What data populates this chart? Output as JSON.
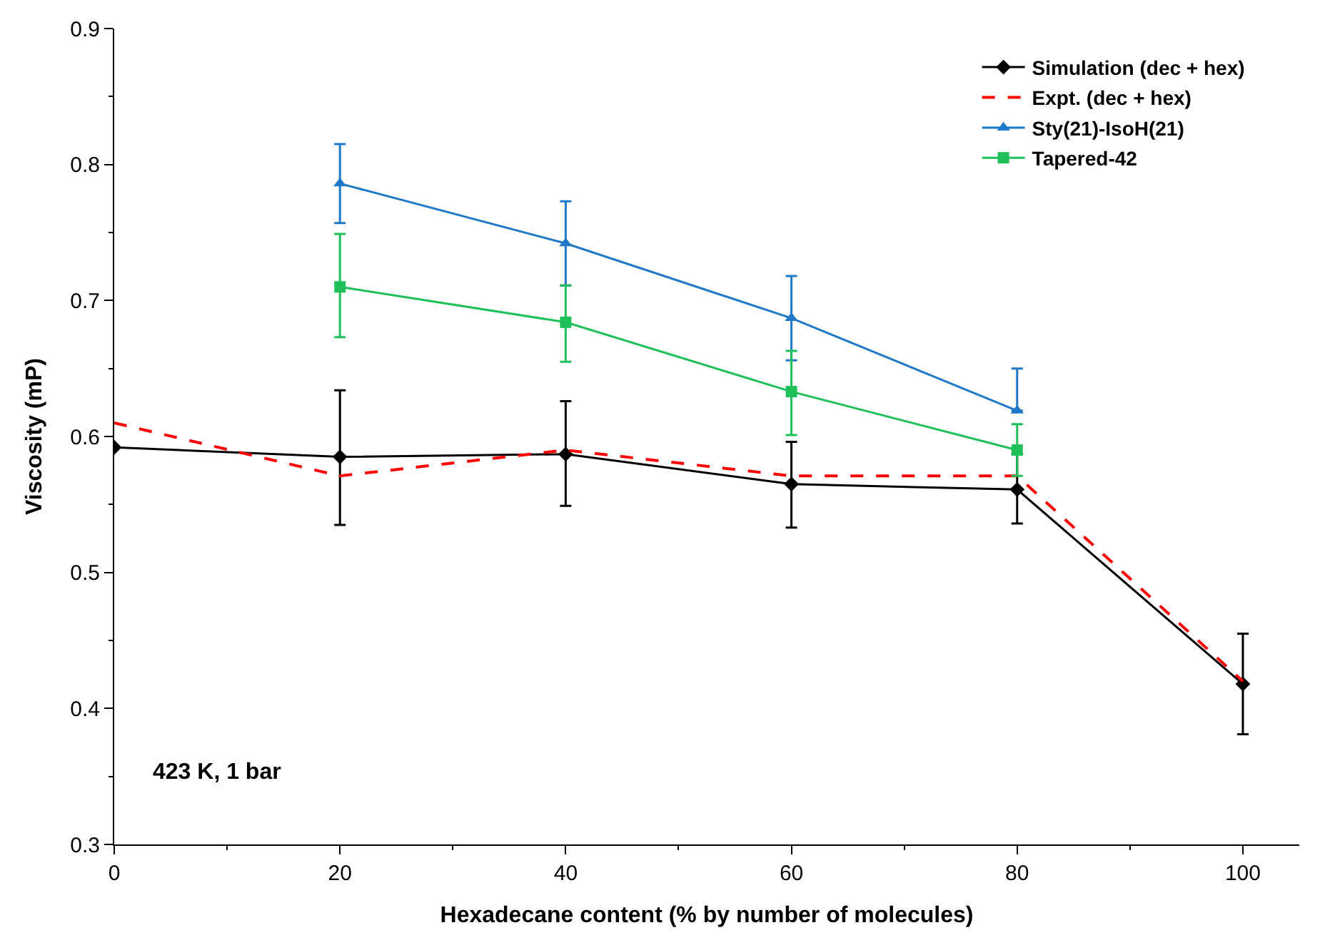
{
  "chart_data": {
    "type": "line",
    "xlabel": "Hexadecane content (% by number of molecules)",
    "ylabel": "Viscosity (mP)",
    "xlim": [
      0,
      105
    ],
    "xticks": [
      0,
      20,
      40,
      60,
      80,
      100
    ],
    "ylim": [
      0.3,
      0.9
    ],
    "yticks": [
      0.3,
      0.4,
      0.5,
      0.6,
      0.7,
      0.8,
      0.9
    ],
    "legend": "top right",
    "annotations": [
      "423 K, 1 bar"
    ],
    "series": [
      {
        "name": "Simulation (dec + hex)",
        "color": "#000000",
        "marker": "diamond",
        "line_style": "solid",
        "x": [
          0,
          20,
          40,
          60,
          80,
          100
        ],
        "values": [
          0.592,
          0.585,
          0.587,
          0.565,
          0.561,
          0.418
        ],
        "errors": [
          null,
          [
            0.535,
            0.634
          ],
          [
            0.549,
            0.626
          ],
          [
            0.533,
            0.596
          ],
          [
            0.536,
            0.587
          ],
          [
            0.381,
            0.455
          ]
        ]
      },
      {
        "name": "Expt. (dec + hex)",
        "color": "#ff0000",
        "marker": "none",
        "line_style": "dashed",
        "x": [
          0,
          20,
          40,
          60,
          80,
          100
        ],
        "values": [
          0.61,
          0.571,
          0.59,
          0.571,
          0.571,
          0.42
        ]
      },
      {
        "name": "Sty(21)-IsoH(21)",
        "color": "#1f78c8",
        "marker": "triangle",
        "line_style": "solid",
        "x": [
          20,
          40,
          60,
          80
        ],
        "values": [
          0.786,
          0.742,
          0.687,
          0.619
        ],
        "errors": [
          [
            0.757,
            0.815
          ],
          [
            0.711,
            0.773
          ],
          [
            0.656,
            0.718
          ],
          [
            0.619,
            0.65
          ]
        ]
      },
      {
        "name": "Tapered-42",
        "color": "#1fbf5a",
        "marker": "square",
        "line_style": "solid",
        "x": [
          20,
          40,
          60,
          80
        ],
        "values": [
          0.71,
          0.684,
          0.633,
          0.59
        ],
        "errors": [
          [
            0.673,
            0.749
          ],
          [
            0.655,
            0.711
          ],
          [
            0.601,
            0.663
          ],
          [
            0.571,
            0.609
          ]
        ]
      }
    ]
  }
}
